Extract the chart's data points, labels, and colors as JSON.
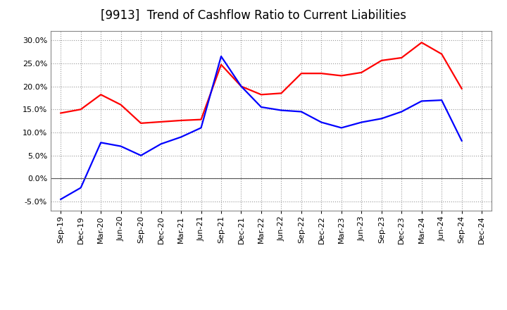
{
  "title": "[9913]  Trend of Cashflow Ratio to Current Liabilities",
  "x_labels": [
    "Sep-19",
    "Dec-19",
    "Mar-20",
    "Jun-20",
    "Sep-20",
    "Dec-20",
    "Mar-21",
    "Jun-21",
    "Sep-21",
    "Dec-21",
    "Mar-22",
    "Jun-22",
    "Sep-22",
    "Dec-22",
    "Mar-23",
    "Jun-23",
    "Sep-23",
    "Dec-23",
    "Mar-24",
    "Jun-24",
    "Sep-24",
    "Dec-24"
  ],
  "operating_cf": [
    0.142,
    0.15,
    0.182,
    0.16,
    0.12,
    0.123,
    0.126,
    0.128,
    0.247,
    0.2,
    0.182,
    0.185,
    0.228,
    0.228,
    0.223,
    0.23,
    0.256,
    0.262,
    0.295,
    0.27,
    0.195,
    null
  ],
  "free_cf": [
    -0.045,
    -0.02,
    0.078,
    0.07,
    0.05,
    0.075,
    0.09,
    0.11,
    0.265,
    0.2,
    0.155,
    0.148,
    0.145,
    0.122,
    0.11,
    0.122,
    0.13,
    0.145,
    0.168,
    0.17,
    0.082,
    null
  ],
  "operating_color": "#FF0000",
  "free_color": "#0000FF",
  "ylim": [
    -0.07,
    0.32
  ],
  "yticks": [
    -0.05,
    0.0,
    0.05,
    0.1,
    0.15,
    0.2,
    0.25,
    0.3
  ],
  "background_color": "#FFFFFF",
  "plot_bg_color": "#FFFFFF",
  "grid_color": "#999999",
  "title_fontsize": 12,
  "legend_fontsize": 9.5,
  "tick_fontsize": 8
}
